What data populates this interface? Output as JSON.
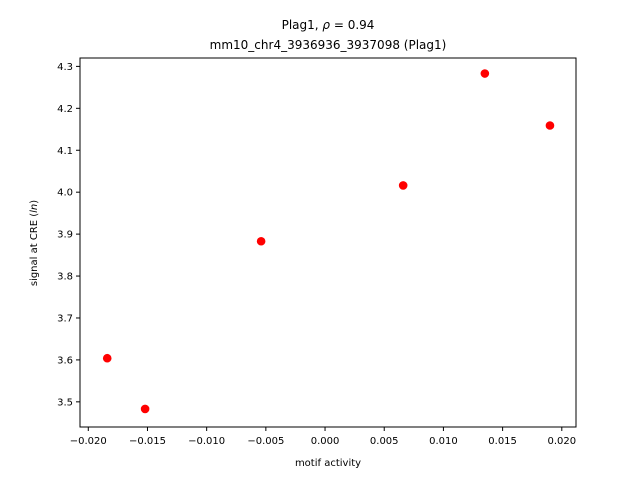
{
  "chart_data": {
    "type": "scatter",
    "title_line1_prefix": "Plag1, ",
    "title_line1_rho": "ρ",
    "title_line1_suffix": " = 0.94",
    "title_line2": "mm10_chr4_3936936_3937098 (Plag1)",
    "xlabel": "motif activity",
    "ylabel_prefix": "signal at CRE (",
    "ylabel_italic": "ln",
    "ylabel_suffix": ")",
    "xlim": [
      -0.0207,
      0.0212
    ],
    "ylim": [
      3.44,
      4.32
    ],
    "xticks": [
      -0.02,
      -0.015,
      -0.01,
      -0.005,
      0.0,
      0.005,
      0.01,
      0.015,
      0.02
    ],
    "xtick_labels": [
      "−0.020",
      "−0.015",
      "−0.010",
      "−0.005",
      "0.000",
      "0.005",
      "0.010",
      "0.015",
      "0.020"
    ],
    "yticks": [
      3.5,
      3.6,
      3.7,
      3.8,
      3.9,
      4.0,
      4.1,
      4.2,
      4.3
    ],
    "ytick_labels": [
      "3.5",
      "3.6",
      "3.7",
      "3.8",
      "3.9",
      "4.0",
      "4.1",
      "4.2",
      "4.3"
    ],
    "grid": false,
    "legend": "none",
    "point_color": "#ff0000",
    "points": [
      {
        "x": -0.0184,
        "y": 3.604
      },
      {
        "x": -0.0152,
        "y": 3.483
      },
      {
        "x": -0.0054,
        "y": 3.883
      },
      {
        "x": 0.0066,
        "y": 4.016
      },
      {
        "x": 0.0135,
        "y": 4.283
      },
      {
        "x": 0.019,
        "y": 4.159
      }
    ]
  }
}
